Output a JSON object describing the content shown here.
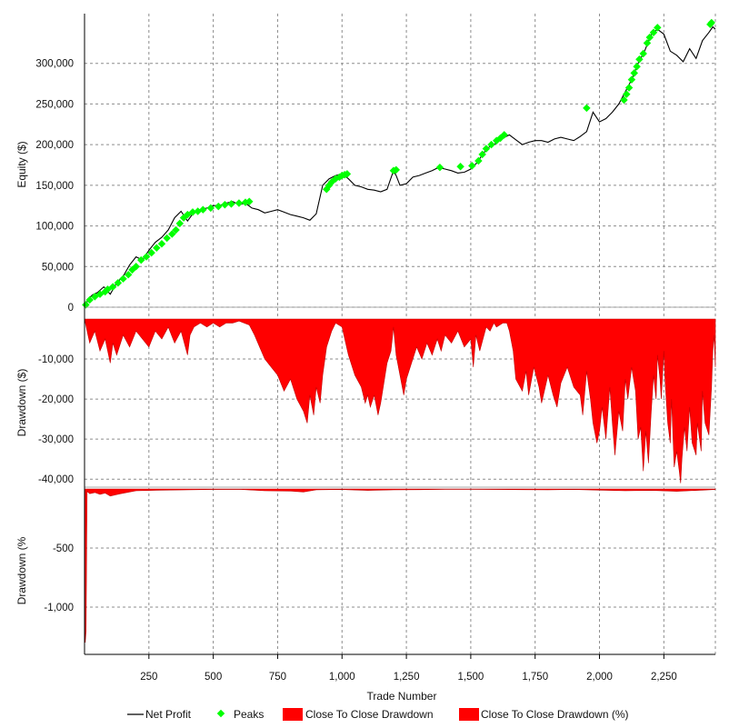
{
  "chart_data": {
    "type": "line",
    "xlabel": "Trade Number",
    "xlim": [
      0,
      2450
    ],
    "x_ticks": [
      250,
      500,
      750,
      1000,
      1250,
      1500,
      1750,
      2000,
      2250
    ],
    "x_tick_labels": [
      "250",
      "500",
      "750",
      "1,000",
      "1,250",
      "1,500",
      "1,750",
      "2,000",
      "2,250"
    ],
    "grid": true,
    "legend_position": "bottom",
    "legend": [
      "Net Profit",
      "Peaks",
      "Close To Close Drawdown",
      "Close To Close Drawdown (%)"
    ],
    "colors": {
      "net_profit": "#000000",
      "peaks": "#00ff00",
      "drawdown": "#ff0000",
      "drawdown_pct": "#ff0000",
      "grid": "#8c8c8c"
    },
    "panels": [
      {
        "id": "equity",
        "ylabel": "Equity ($)",
        "ylim": [
          0,
          350000
        ],
        "y_ticks": [
          0,
          50000,
          100000,
          150000,
          200000,
          250000,
          300000
        ],
        "y_tick_labels": [
          "0",
          "50,000",
          "100,000",
          "150,000",
          "200,000",
          "250,000",
          "300,000"
        ],
        "series": [
          {
            "name": "Net Profit",
            "type": "line",
            "x": [
              0,
              15,
              30,
              50,
              75,
              100,
              125,
              150,
              175,
              200,
              225,
              250,
              275,
              300,
              325,
              350,
              375,
              400,
              425,
              450,
              475,
              500,
              525,
              550,
              575,
              600,
              625,
              650,
              675,
              700,
              725,
              750,
              775,
              800,
              825,
              850,
              875,
              900,
              925,
              950,
              975,
              1000,
              1025,
              1050,
              1075,
              1100,
              1125,
              1150,
              1175,
              1200,
              1210,
              1225,
              1250,
              1275,
              1300,
              1325,
              1350,
              1375,
              1400,
              1425,
              1450,
              1475,
              1500,
              1525,
              1550,
              1575,
              1600,
              1625,
              1650,
              1675,
              1700,
              1725,
              1750,
              1775,
              1800,
              1825,
              1850,
              1875,
              1900,
              1925,
              1950,
              1975,
              2000,
              2025,
              2050,
              2075,
              2100,
              2125,
              2150,
              2175,
              2200,
              2225,
              2250,
              2275,
              2300,
              2325,
              2350,
              2375,
              2400,
              2425,
              2440,
              2450
            ],
            "y": [
              0,
              10000,
              15000,
              18000,
              25000,
              16000,
              30000,
              38000,
              52000,
              62000,
              58000,
              70000,
              80000,
              86000,
              95000,
              110000,
              118000,
              106000,
              117000,
              120000,
              122000,
              125000,
              125000,
              128000,
              130000,
              126000,
              128000,
              122000,
              120000,
              116000,
              118000,
              120000,
              117000,
              114000,
              112000,
              110000,
              107000,
              115000,
              150000,
              158000,
              162000,
              164000,
              158000,
              150000,
              148000,
              145000,
              144000,
              142000,
              145000,
              168000,
              162000,
              150000,
              152000,
              160000,
              162000,
              165000,
              168000,
              172000,
              170000,
              168000,
              165000,
              166000,
              170000,
              178000,
              190000,
              198000,
              202000,
              208000,
              212000,
              206000,
              200000,
              203000,
              205000,
              205000,
              203000,
              207000,
              209000,
              207000,
              205000,
              210000,
              216000,
              240000,
              228000,
              232000,
              240000,
              250000,
              265000,
              280000,
              300000,
              315000,
              335000,
              342000,
              336000,
              315000,
              310000,
              302000,
              318000,
              306000,
              328000,
              338000,
              345000,
              342000
            ]
          },
          {
            "name": "Peaks",
            "type": "scatter",
            "x": [
              5,
              20,
              40,
              60,
              80,
              90,
              110,
              130,
              150,
              170,
              185,
              200,
              220,
              240,
              260,
              280,
              300,
              320,
              340,
              355,
              370,
              385,
              400,
              420,
              440,
              460,
              490,
              520,
              545,
              570,
              600,
              625,
              640,
              940,
              950,
              960,
              975,
              990,
              1000,
              1010,
              1020,
              1200,
              1210,
              1380,
              1460,
              1505,
              1530,
              1545,
              1560,
              1580,
              1600,
              1615,
              1630,
              1950,
              2095,
              2105,
              2115,
              2125,
              2135,
              2145,
              2155,
              2170,
              2185,
              2195,
              2210,
              2225,
              2430,
              2435
            ],
            "y": [
              3000,
              9000,
              13000,
              16000,
              19000,
              22000,
              25000,
              30000,
              35000,
              40000,
              46000,
              50000,
              58000,
              62000,
              67000,
              73000,
              78000,
              85000,
              90000,
              95000,
              103000,
              110000,
              114000,
              117000,
              118000,
              120000,
              122000,
              124000,
              126000,
              127000,
              128000,
              129000,
              130000,
              145000,
              150000,
              154000,
              158000,
              160000,
              162000,
              163000,
              164000,
              168000,
              169000,
              172000,
              173000,
              174000,
              180000,
              188000,
              195000,
              200000,
              205000,
              208000,
              212000,
              245000,
              255000,
              262000,
              270000,
              280000,
              288000,
              296000,
              305000,
              312000,
              325000,
              332000,
              338000,
              344000,
              348000,
              350000
            ]
          }
        ]
      },
      {
        "id": "drawdown",
        "ylabel": "Drawdown ($)",
        "ylim": [
          -42000,
          0
        ],
        "y_ticks": [
          -10000,
          -20000,
          -30000,
          -40000
        ],
        "y_tick_labels": [
          "-10,000",
          "-20,000",
          "-30,000",
          "-40,000"
        ],
        "series": [
          {
            "name": "Close To Close Drawdown",
            "type": "area",
            "x": [
              0,
              20,
              40,
              60,
              80,
              100,
              110,
              125,
              150,
              175,
              200,
              225,
              250,
              275,
              300,
              325,
              350,
              375,
              400,
              410,
              425,
              450,
              475,
              500,
              525,
              550,
              575,
              600,
              640,
              660,
              680,
              700,
              725,
              750,
              775,
              800,
              825,
              850,
              865,
              875,
              890,
              900,
              915,
              925,
              940,
              960,
              975,
              1000,
              1025,
              1050,
              1075,
              1090,
              1100,
              1110,
              1125,
              1140,
              1150,
              1160,
              1175,
              1190,
              1200,
              1210,
              1225,
              1240,
              1250,
              1270,
              1290,
              1310,
              1330,
              1350,
              1370,
              1385,
              1400,
              1425,
              1450,
              1475,
              1500,
              1510,
              1520,
              1535,
              1560,
              1575,
              1590,
              1600,
              1625,
              1640,
              1650,
              1665,
              1675,
              1700,
              1715,
              1725,
              1745,
              1765,
              1775,
              1800,
              1820,
              1835,
              1850,
              1875,
              1900,
              1925,
              1935,
              1950,
              1965,
              1975,
              1990,
              2000,
              2010,
              2025,
              2040,
              2050,
              2060,
              2075,
              2090,
              2100,
              2110,
              2125,
              2140,
              2150,
              2160,
              2170,
              2175,
              2180,
              2190,
              2200,
              2210,
              2220,
              2225,
              2235,
              2240,
              2250,
              2255,
              2265,
              2275,
              2280,
              2290,
              2300,
              2310,
              2315,
              2320,
              2330,
              2340,
              2350,
              2360,
              2375,
              2380,
              2395,
              2400,
              2410,
              2425,
              2435,
              2440,
              2445,
              2450
            ],
            "y": [
              0,
              -6000,
              -3000,
              -8000,
              -5000,
              -11000,
              -6000,
              -9000,
              -4000,
              -7000,
              -3000,
              -5000,
              -7000,
              -3000,
              -5000,
              -2000,
              -6000,
              -3000,
              -9000,
              -4000,
              -2000,
              -1000,
              -2000,
              -1000,
              -2000,
              -1000,
              -1000,
              -500,
              -1500,
              -4000,
              -7000,
              -10000,
              -12000,
              -14000,
              -18000,
              -15000,
              -20000,
              -23000,
              -26000,
              -19000,
              -24000,
              -17000,
              -21000,
              -14000,
              -7000,
              -3000,
              -1000,
              -2000,
              -9000,
              -14000,
              -17000,
              -21000,
              -19000,
              -22000,
              -19000,
              -24000,
              -21000,
              -17000,
              -11000,
              -8000,
              -2000,
              -9000,
              -14000,
              -19000,
              -15000,
              -11000,
              -7000,
              -10000,
              -6000,
              -9000,
              -5000,
              -8000,
              -4000,
              -6000,
              -3000,
              -7000,
              -5000,
              -12000,
              -4000,
              -8000,
              -2000,
              -3000,
              -1000,
              -2000,
              -1000,
              -1000,
              -3000,
              -8000,
              -15000,
              -18000,
              -13000,
              -19000,
              -12000,
              -17000,
              -21000,
              -14000,
              -19000,
              -22000,
              -16000,
              -12000,
              -17000,
              -19000,
              -24000,
              -13000,
              -20000,
              -26000,
              -31000,
              -28000,
              -22000,
              -30000,
              -17000,
              -26000,
              -34000,
              -23000,
              -28000,
              -15000,
              -20000,
              -12000,
              -18000,
              -30000,
              -27000,
              -38000,
              -33000,
              -28000,
              -36000,
              -24000,
              -14000,
              -20000,
              -9000,
              -15000,
              -20000,
              -8000,
              -16000,
              -26000,
              -31000,
              -20000,
              -37000,
              -33000,
              -38000,
              -41000,
              -35000,
              -27000,
              -33000,
              -22000,
              -31000,
              -34000,
              -26000,
              -33000,
              -18000,
              -26000,
              -29000,
              -17000,
              -8000,
              -4000,
              -12000
            ]
          }
        ]
      },
      {
        "id": "drawdown_pct",
        "ylabel": "Drawdown (%",
        "ylim": [
          -1400,
          0
        ],
        "y_ticks": [
          -500,
          -1000
        ],
        "y_tick_labels": [
          "-500",
          "-1,000"
        ],
        "series": [
          {
            "name": "Close To Close Drawdown (%)",
            "type": "area",
            "x": [
              0,
              3,
              6,
              10,
              20,
              40,
              60,
              80,
              100,
              120,
              140,
              200,
              300,
              400,
              500,
              600,
              700,
              800,
              850,
              900,
              1000,
              1100,
              1200,
              1300,
              1400,
              1500,
              1600,
              1700,
              1800,
              1900,
              2000,
              2100,
              2200,
              2300,
              2400,
              2450
            ],
            "y": [
              0,
              -1300,
              -1200,
              -20,
              -40,
              -30,
              -45,
              -35,
              -60,
              -50,
              -40,
              -15,
              -10,
              -8,
              -5,
              -4,
              -15,
              -18,
              -25,
              -8,
              -5,
              -12,
              -8,
              -6,
              -4,
              -3,
              -5,
              -6,
              -8,
              -5,
              -10,
              -15,
              -12,
              -20,
              -10,
              -5
            ]
          }
        ]
      }
    ]
  }
}
